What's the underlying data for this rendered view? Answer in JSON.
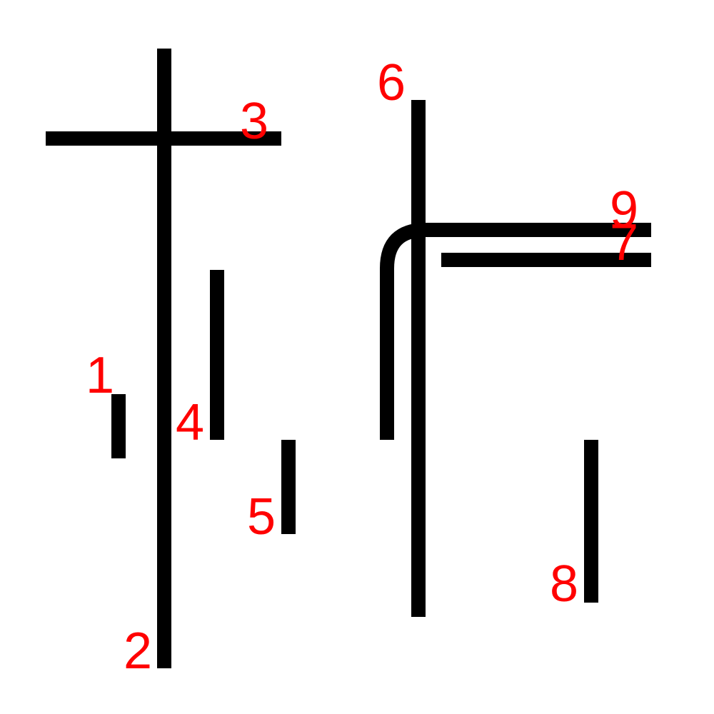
{
  "colors": {
    "background": "#ffffff",
    "line": "#000000",
    "label": "#ff0000"
  },
  "lines": [
    {
      "id": "line-1",
      "label": "1"
    },
    {
      "id": "line-2",
      "label": "2"
    },
    {
      "id": "line-3",
      "label": "3"
    },
    {
      "id": "line-4",
      "label": "4"
    },
    {
      "id": "line-5",
      "label": "5"
    },
    {
      "id": "line-6",
      "label": "6"
    },
    {
      "id": "line-7",
      "label": "7"
    },
    {
      "id": "line-8",
      "label": "8"
    },
    {
      "id": "line-9",
      "label": "9"
    }
  ]
}
